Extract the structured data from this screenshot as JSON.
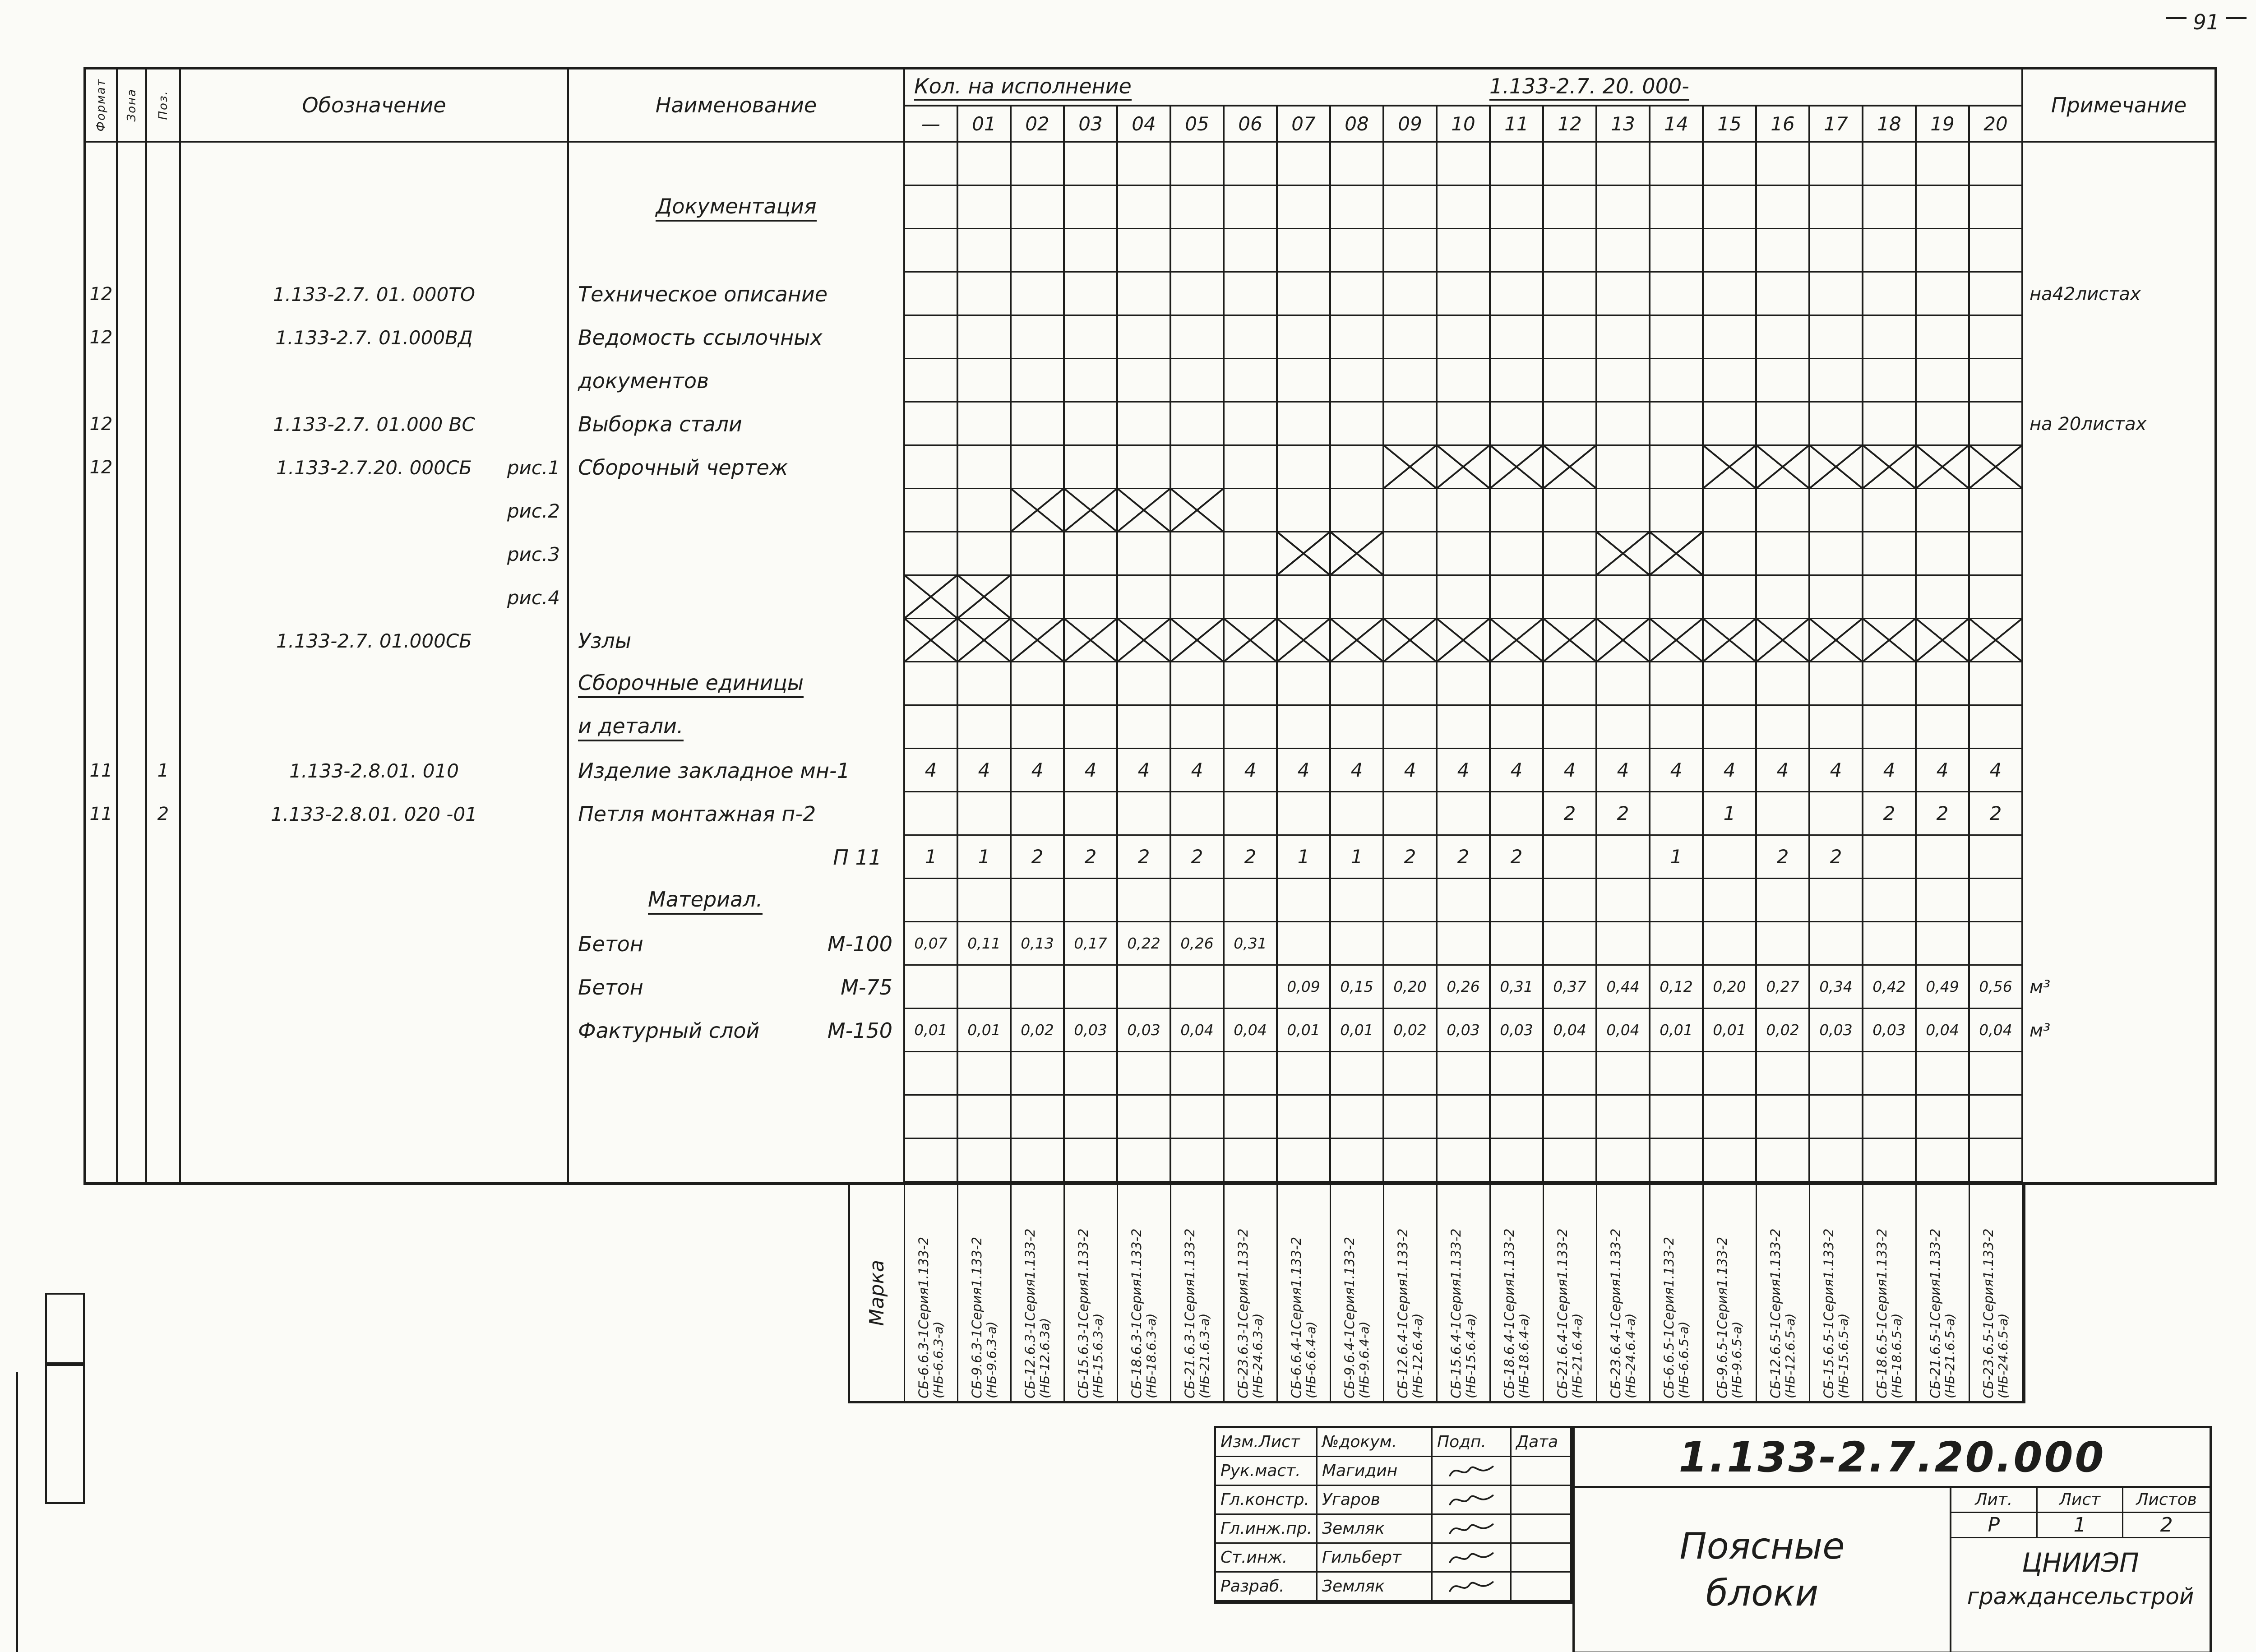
{
  "colors": {
    "ink": "#1d1d1b",
    "paper": "#fbfbf7"
  },
  "page": {
    "number": "91"
  },
  "header": {
    "format": "Формат",
    "zone": "Зона",
    "pos": "Поз.",
    "designation": "Обозначение",
    "name": "Наименование",
    "qty_title": "Кол. на  исполнение",
    "qty_series": "1.133-2.7. 20. 000-",
    "note": "Примечание",
    "exec_cols": [
      "—",
      "01",
      "02",
      "03",
      "04",
      "05",
      "06",
      "07",
      "08",
      "09",
      "10",
      "11",
      "12",
      "13",
      "14",
      "15",
      "16",
      "17",
      "18",
      "19",
      "20"
    ]
  },
  "rows": [
    {},
    {
      "name": "Документация",
      "name_align": "center",
      "underline": true
    },
    {},
    {
      "format": "12",
      "designation": "1.133-2.7. 01. 000ТО",
      "name": "Техническое описание",
      "note": "на42листах"
    },
    {
      "format": "12",
      "designation": "1.133-2.7. 01.000ВД",
      "name": "Ведомость ссылочных"
    },
    {
      "name": "документов"
    },
    {
      "format": "12",
      "designation": "1.133-2.7. 01.000 ВС",
      "name": "Выборка  стали",
      "note": "на 20листах"
    },
    {
      "format": "12",
      "designation": "1.133-2.7.20. 000СБ",
      "sub": "рис.1",
      "name": "Сборочный чертеж",
      "qty": {
        "9": "X",
        "10": "X",
        "11": "X",
        "12": "X",
        "15": "X",
        "16": "X",
        "17": "X",
        "18": "X",
        "19": "X",
        "20": "X"
      }
    },
    {
      "sub": "рис.2",
      "qty": {
        "2": "X",
        "3": "X",
        "4": "X",
        "5": "X"
      }
    },
    {
      "sub": "рис.3",
      "qty": {
        "7": "X",
        "8": "X",
        "13": "X",
        "14": "X"
      }
    },
    {
      "sub": "рис.4",
      "qty": {
        "0": "X",
        "1": "X"
      }
    },
    {
      "designation": "1.133-2.7. 01.000СБ",
      "name": "Узлы",
      "qty": {
        "0": "X",
        "1": "X",
        "2": "X",
        "3": "X",
        "4": "X",
        "5": "X",
        "6": "X",
        "7": "X",
        "8": "X",
        "9": "X",
        "10": "X",
        "11": "X",
        "12": "X",
        "13": "X",
        "14": "X",
        "15": "X",
        "16": "X",
        "17": "X",
        "18": "X",
        "19": "X",
        "20": "X"
      }
    },
    {
      "name": "Сборочные единицы",
      "underline": true
    },
    {
      "name": "и детали.",
      "underline": true
    },
    {
      "format": "11",
      "pos": "1",
      "designation": "1.133-2.8.01. 010",
      "name": "Изделие закладное мн-1",
      "qty": {
        "0": "4",
        "1": "4",
        "2": "4",
        "3": "4",
        "4": "4",
        "5": "4",
        "6": "4",
        "7": "4",
        "8": "4",
        "9": "4",
        "10": "4",
        "11": "4",
        "12": "4",
        "13": "4",
        "14": "4",
        "15": "4",
        "16": "4",
        "17": "4",
        "18": "4",
        "19": "4",
        "20": "4"
      }
    },
    {
      "format": "11",
      "pos": "2",
      "designation": "1.133-2.8.01. 020 -01",
      "name": "Петля монтажная п-2",
      "qty": {
        "12": "2",
        "13": "2",
        "15": "1",
        "18": "2",
        "19": "2",
        "20": "2"
      }
    },
    {
      "name": "П 11",
      "name_align": "right",
      "qty": {
        "0": "1",
        "1": "1",
        "2": "2",
        "3": "2",
        "4": "2",
        "5": "2",
        "6": "2",
        "7": "1",
        "8": "1",
        "9": "2",
        "10": "2",
        "11": "2",
        "14": "1",
        "16": "2",
        "17": "2"
      }
    },
    {
      "name": "Материал.",
      "name_align": "indent",
      "underline": true
    },
    {
      "name": "Бетон",
      "grade": "М-100",
      "qty": {
        "0": "0,07",
        "1": "0,11",
        "2": "0,13",
        "3": "0,17",
        "4": "0,22",
        "5": "0,26",
        "6": "0,31"
      }
    },
    {
      "name": "Бетон",
      "grade": "М-75",
      "qty": {
        "7": "0,09",
        "8": "0,15",
        "9": "0,20",
        "10": "0,26",
        "11": "0,31",
        "12": "0,37",
        "13": "0,44",
        "14": "0,12",
        "15": "0,20",
        "16": "0,27",
        "17": "0,34",
        "18": "0,42",
        "19": "0,49",
        "20": "0,56"
      },
      "note": "м³"
    },
    {
      "name": "Фактурный слой",
      "grade": "М-150",
      "qty": {
        "0": "0,01",
        "1": "0,01",
        "2": "0,02",
        "3": "0,03",
        "4": "0,03",
        "5": "0,04",
        "6": "0,04",
        "7": "0,01",
        "8": "0,01",
        "9": "0,02",
        "10": "0,03",
        "11": "0,03",
        "12": "0,04",
        "13": "0,04",
        "14": "0,01",
        "15": "0,01",
        "16": "0,02",
        "17": "0,03",
        "18": "0,03",
        "19": "0,04",
        "20": "0,04"
      },
      "note": "м³"
    },
    {},
    {},
    {}
  ],
  "marka": {
    "label": "Марка",
    "items": [
      {
        "top": "СБ-6.6.3-1Серия1.133-2",
        "bottom": "(НБ-6.6.3-а)"
      },
      {
        "top": "СБ-9.6.3-1Серия1.133-2",
        "bottom": "(НБ-9.6.3-а)"
      },
      {
        "top": "СБ-12.6.3-1Серия1.133-2",
        "bottom": "(НБ-12.6.3а)"
      },
      {
        "top": "СБ-15.6.3-1Серия1.133-2",
        "bottom": "(НБ-15.6.3-а)"
      },
      {
        "top": "СБ-18.6.3-1Серия1.133-2",
        "bottom": "(НБ-18.6.3-а)"
      },
      {
        "top": "СБ-21.6.3-1Серия1.133-2",
        "bottom": "(НБ-21.6.3-а)"
      },
      {
        "top": "СБ-23.6.3-1Серия1.133-2",
        "bottom": "(НБ-24.6.3-а)"
      },
      {
        "top": "СБ-6.6.4-1Серия1.133-2",
        "bottom": "(НБ-6.6.4-а)"
      },
      {
        "top": "СБ-9.6.4-1Серия1.133-2",
        "bottom": "(НБ-9.6.4-а)"
      },
      {
        "top": "СБ-12.6.4-1Серия1.133-2",
        "bottom": "(НБ-12.6.4-а)"
      },
      {
        "top": "СБ-15.6.4-1Серия1.133-2",
        "bottom": "(НБ-15.6.4-а)"
      },
      {
        "top": "СБ-18.6.4-1Серия1.133-2",
        "bottom": "(НБ-18.6.4-а)"
      },
      {
        "top": "СБ-21.6.4-1Серия1.133-2",
        "bottom": "(НБ-21.6.4-а)"
      },
      {
        "top": "СБ-23.6.4-1Серия1.133-2",
        "bottom": "(НБ-24.6.4-а)"
      },
      {
        "top": "СБ-6.6.5-1Серия1.133-2",
        "bottom": "(НБ-6.6.5-а)"
      },
      {
        "top": "СБ-9.6.5-1Серия1.133-2",
        "bottom": "(НБ-9.6.5-а)"
      },
      {
        "top": "СБ-12.6.5-1Серия1.133-2",
        "bottom": "(НБ-12.6.5-а)"
      },
      {
        "top": "СБ-15.6.5-1Серия1.133-2",
        "bottom": "(НБ-15.6.5-а)"
      },
      {
        "top": "СБ-18.6.5-1Серия1.133-2",
        "bottom": "(НБ-18.6.5-а)"
      },
      {
        "top": "СБ-21.6.5-1Серия1.133-2",
        "bottom": "(НБ-21.6.5-а)"
      },
      {
        "top": "СБ-23.6.5-1Серия1.133-2",
        "bottom": "(НБ-24.6.5-а)"
      }
    ]
  },
  "title_block": {
    "sig_table": {
      "header": [
        "Изм.Лист",
        "№докум.",
        "Подп.",
        "Дата"
      ],
      "rows": [
        {
          "role": "Рук.маст.",
          "name": "Магидин",
          "signed": true
        },
        {
          "role": "Гл.констр.",
          "name": "Угаров",
          "signed": true
        },
        {
          "role": "Гл.инж.пр.",
          "name": "Земляк",
          "signed": true
        },
        {
          "role": "Ст.инж.",
          "name": "Гильберт",
          "signed": true
        },
        {
          "role": "Разраб.",
          "name": "Земляк",
          "signed": true
        }
      ]
    },
    "doc_number": "1.133-2.7.20.000",
    "doc_title": "Поясные\nблоки",
    "lit_header": [
      "Лит.",
      "Лист",
      "Листов"
    ],
    "lit_values": [
      "Р",
      "1",
      "2"
    ],
    "org_line1": "ЦНИИЭП",
    "org_line2": "граждансельстрой"
  }
}
